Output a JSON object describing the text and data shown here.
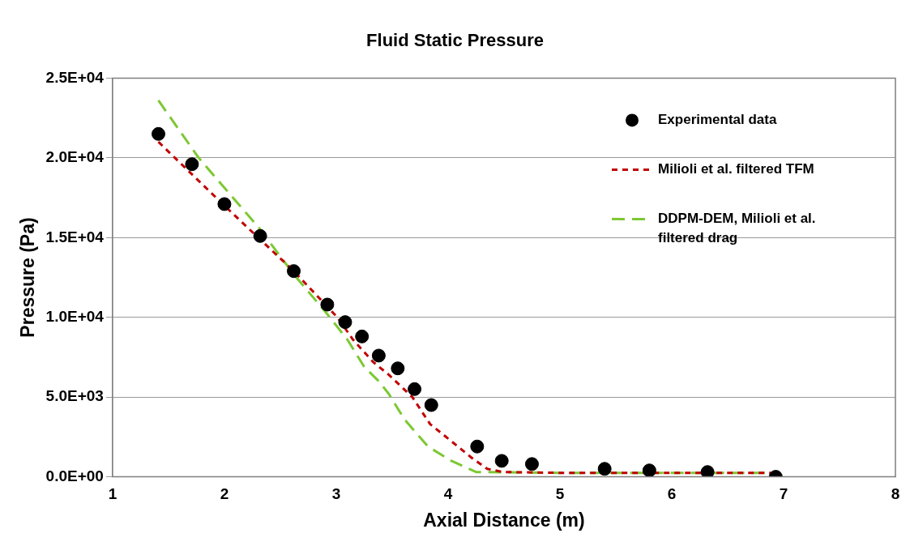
{
  "chart_data": {
    "type": "scatter",
    "title": "Fluid Static Pressure",
    "xlabel": "Axial Distance (m)",
    "ylabel": "Pressure (Pa)",
    "xlim": [
      1,
      8
    ],
    "xticks": [
      1,
      2,
      3,
      4,
      5,
      6,
      7,
      8
    ],
    "ylim": [
      0,
      25000
    ],
    "yticks": [
      {
        "value": 0,
        "label": "0.0E+00"
      },
      {
        "value": 5000,
        "label": "5.0E+03"
      },
      {
        "value": 10000,
        "label": "1.0E+04"
      },
      {
        "value": 15000,
        "label": "1.5E+04"
      },
      {
        "value": 20000,
        "label": "2.0E+04"
      },
      {
        "value": 25000,
        "label": "2.5E+04"
      }
    ],
    "grid": "y",
    "legend": "top right",
    "series": [
      {
        "name": "Experimental data",
        "marker": "circle",
        "color": "#000000",
        "x": [
          1.41,
          1.71,
          2.0,
          2.32,
          2.62,
          2.92,
          3.08,
          3.23,
          3.38,
          3.55,
          3.7,
          3.85,
          4.26,
          4.48,
          4.75,
          5.4,
          5.8,
          6.32,
          6.93
        ],
        "values": [
          21500,
          19600,
          17100,
          15100,
          12900,
          10800,
          9700,
          8800,
          7600,
          6800,
          5500,
          4500,
          1900,
          1000,
          800,
          500,
          400,
          300,
          0
        ]
      },
      {
        "name": "Milioli et al. filtered TFM",
        "type": "line",
        "marker": "none",
        "line_style": "dotted",
        "color": "#c00000",
        "x": [
          1.41,
          2.0,
          2.62,
          3.01,
          3.15,
          3.33,
          3.47,
          3.68,
          3.84,
          4.0,
          4.21,
          4.35,
          4.49,
          5.0,
          6.0,
          6.93
        ],
        "values": [
          21000,
          17000,
          12900,
          10000,
          8600,
          7200,
          6400,
          5000,
          3300,
          2400,
          1200,
          500,
          300,
          250,
          250,
          250
        ]
      },
      {
        "name": "DDPM-DEM, Milioli et al. filtered drag",
        "type": "line",
        "marker": "none",
        "line_style": "dashed",
        "color": "#7dc832",
        "x": [
          1.41,
          1.77,
          2.31,
          2.62,
          2.92,
          3.1,
          3.25,
          3.38,
          3.47,
          3.61,
          3.82,
          4.03,
          4.25,
          5.0,
          6.0,
          6.93
        ],
        "values": [
          23600,
          20000,
          15600,
          12700,
          10200,
          8600,
          6900,
          6000,
          5200,
          3600,
          1900,
          1000,
          300,
          250,
          250,
          250
        ]
      }
    ]
  }
}
